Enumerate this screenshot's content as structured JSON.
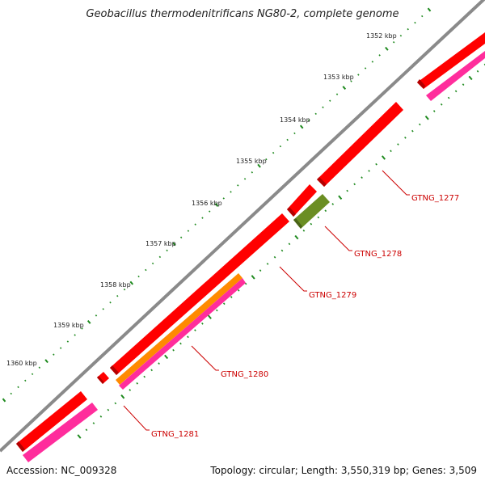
{
  "header": {
    "title": "Geobacillus thermodenitrificans NG80-2, complete genome"
  },
  "footer": {
    "accession": "Accession: NC_009328",
    "summary": "Topology: circular; Length: 3,550,319 bp; Genes: 3,509"
  },
  "ticks": [
    "1352 kbp",
    "1353 kbp",
    "1354 kbp",
    "1355 kbp",
    "1356 kbp",
    "1357 kbp",
    "1358 kbp",
    "1359 kbp",
    "1360 kbp"
  ],
  "gene_labels": [
    "GTNG_1277",
    "GTNG_1278",
    "GTNG_1279",
    "GTNG_1280",
    "GTNG_1281"
  ],
  "colors": {
    "backbone": "#8a8a8a",
    "gene": "#ff0000",
    "gene_dark": "#b30000",
    "magenta": "#ff2d9c",
    "orange": "#ff8a00",
    "olive": "#6b8e23",
    "tick": "#1f8a1f",
    "label_red": "#cc0000"
  }
}
